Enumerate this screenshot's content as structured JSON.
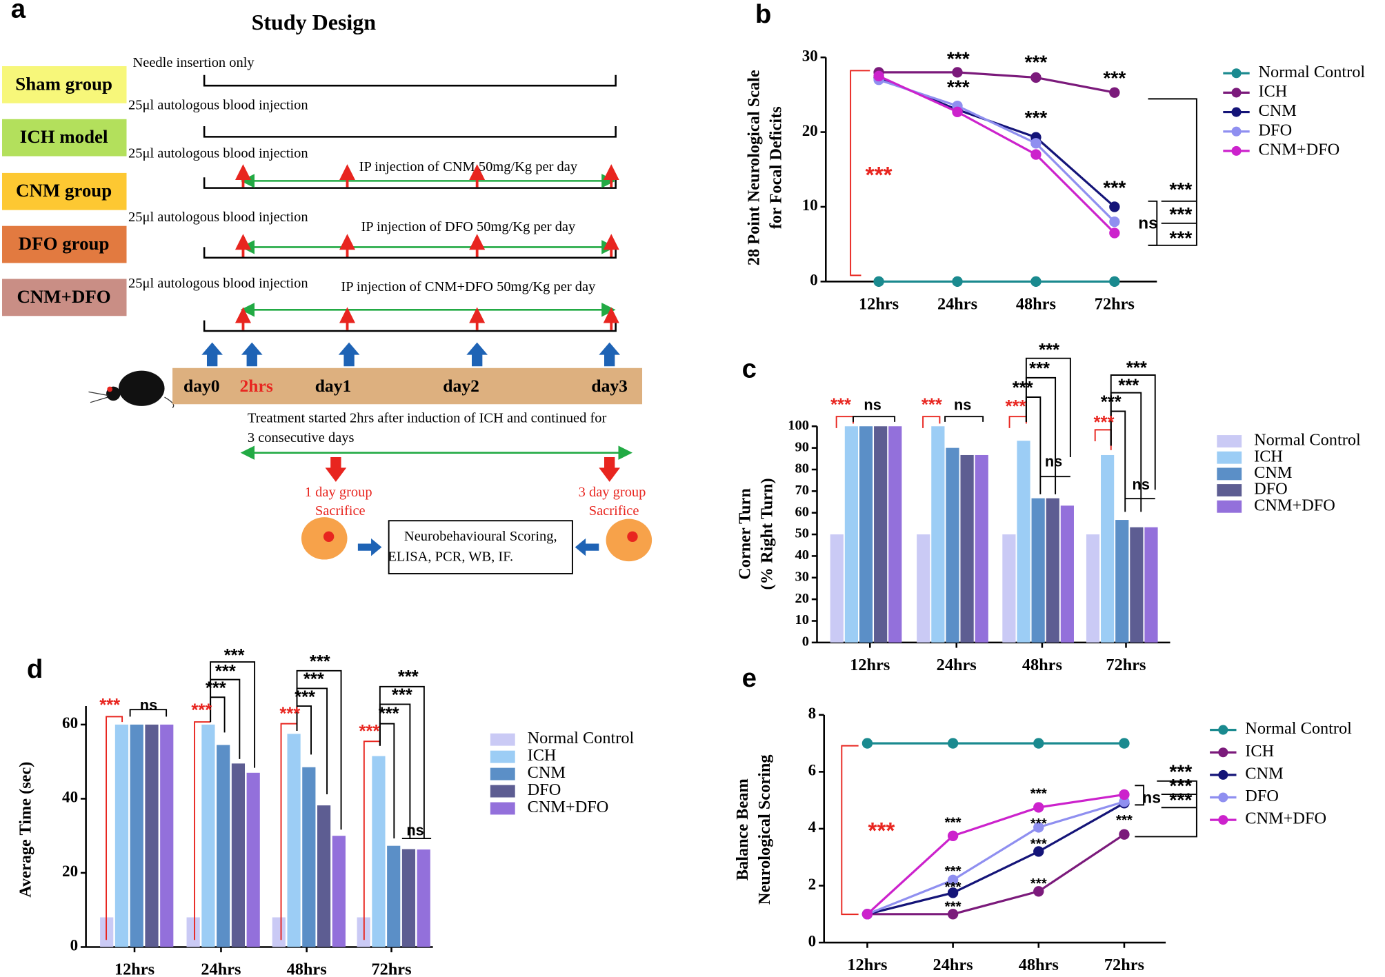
{
  "diagram": {
    "panel": "a",
    "title": "Study Design",
    "groups": [
      {
        "label": "Sham group",
        "color": "#f7f77a",
        "note": "Needle insertion only"
      },
      {
        "label": "ICH model",
        "color": "#b3e05c",
        "note": "25μl autologous blood injection"
      },
      {
        "label": "CNM group",
        "color": "#fdc832",
        "note": "25μl autologous blood injection",
        "ip": "IP injection of CNM 50mg/Kg per day"
      },
      {
        "label": "DFO group",
        "color": "#e27a40",
        "note": "25μl autologous blood injection",
        "ip": "IP injection of DFO 50mg/Kg per day"
      },
      {
        "label": "CNM+DFO",
        "color": "#c98e85",
        "note": "25μl autologous blood injection",
        "ip": "IP injection of CNM+DFO 50mg/Kg per day"
      }
    ],
    "timeline": [
      "day0",
      "2hrs",
      "day1",
      "day2",
      "day3"
    ],
    "treatment_note": [
      "Treatment started 2hrs after induction of ICH and continued for",
      "3 consecutive days"
    ],
    "sacrifice": [
      [
        "1 day group",
        "Sacrifice"
      ],
      [
        "3 day group",
        "Sacrifice"
      ]
    ],
    "analysis": [
      "Neurobehavioural Scoring,",
      "ELISA, PCR, WB, IF."
    ]
  },
  "chart_data": [
    {
      "panel": "b",
      "type": "line",
      "y_label": [
        "28 Point Neurological Scale",
        "for Focal Deficits"
      ],
      "categories": [
        "12hrs",
        "24hrs",
        "48hrs",
        "72hrs"
      ],
      "series": [
        {
          "name": "Normal Control",
          "color": "#1a8a8f",
          "values": [
            0,
            0,
            0,
            0
          ]
        },
        {
          "name": "ICH",
          "color": "#7b1a7b",
          "values": [
            28,
            28,
            27.3,
            25.3
          ]
        },
        {
          "name": "CNM",
          "color": "#141478",
          "values": [
            27.3,
            23,
            19.3,
            10
          ]
        },
        {
          "name": "DFO",
          "color": "#8f8ff0",
          "values": [
            27,
            23.5,
            18.5,
            8
          ]
        },
        {
          "name": "CNM+DFO",
          "color": "#cc22cc",
          "values": [
            27.5,
            22.7,
            17,
            6.5
          ]
        }
      ],
      "ylim": [
        0,
        30
      ],
      "yticks": [
        0,
        10,
        20,
        30
      ],
      "annotations": [
        {
          "text": "***",
          "color": "#000000"
        },
        {
          "text": "***",
          "color": "#000000"
        },
        {
          "text": "***",
          "color": "#000000"
        },
        {
          "text": "***",
          "color": "#000000"
        },
        {
          "text": "***",
          "color": "#000000"
        },
        {
          "text": "***",
          "color": "#000000"
        },
        {
          "text": "***",
          "color": "#e8251f"
        },
        {
          "text": "ns",
          "color": "#000000"
        },
        {
          "text": "***",
          "color": "#000000"
        },
        {
          "text": "***",
          "color": "#000000"
        },
        {
          "text": "***",
          "color": "#000000"
        }
      ]
    },
    {
      "panel": "c",
      "type": "bar",
      "y_label": [
        "Corner Turn",
        "(% Right Turn)"
      ],
      "categories": [
        "12hrs",
        "24hrs",
        "48hrs",
        "72hrs"
      ],
      "series": [
        {
          "name": "Normal Control",
          "color": "#cacaf5",
          "values": [
            50,
            50,
            50,
            50
          ]
        },
        {
          "name": "ICH",
          "color": "#9ccdf5",
          "values": [
            100,
            100,
            93.3,
            86.7
          ]
        },
        {
          "name": "CNM",
          "color": "#5b8fc7",
          "values": [
            100,
            90,
            66.7,
            56.7
          ]
        },
        {
          "name": "DFO",
          "color": "#5d5d92",
          "values": [
            100,
            86.7,
            66.7,
            53.3
          ]
        },
        {
          "name": "CNM+DFO",
          "color": "#9370db",
          "values": [
            100,
            86.7,
            63.3,
            53.3
          ]
        }
      ],
      "ylim": [
        0,
        100
      ],
      "yticks": [
        0,
        10,
        20,
        30,
        40,
        50,
        60,
        70,
        80,
        90,
        100
      ],
      "annotations": [
        {
          "text": "***",
          "color": "#e8251f"
        },
        {
          "text": "ns",
          "color": "#000000"
        },
        {
          "text": "***",
          "color": "#e8251f"
        },
        {
          "text": "ns",
          "color": "#000000"
        },
        {
          "text": "***",
          "color": "#e8251f"
        },
        {
          "text": "***",
          "color": "#000000"
        },
        {
          "text": "***",
          "color": "#000000"
        },
        {
          "text": "***",
          "color": "#000000"
        },
        {
          "text": "ns",
          "color": "#000000"
        },
        {
          "text": "***",
          "color": "#e8251f"
        },
        {
          "text": "***",
          "color": "#000000"
        },
        {
          "text": "***",
          "color": "#000000"
        },
        {
          "text": "***",
          "color": "#000000"
        },
        {
          "text": "ns",
          "color": "#000000"
        }
      ]
    },
    {
      "panel": "d",
      "type": "bar",
      "y_label": [
        "Average Time (sec)"
      ],
      "categories": [
        "12hrs",
        "24hrs",
        "48hrs",
        "72hrs"
      ],
      "series": [
        {
          "name": "Normal Control",
          "color": "#cacaf5",
          "values": [
            8,
            8,
            8,
            8
          ]
        },
        {
          "name": "ICH",
          "color": "#9ccdf5",
          "values": [
            60,
            60,
            57.5,
            51.5
          ]
        },
        {
          "name": "CNM",
          "color": "#5b8fc7",
          "values": [
            60,
            54.5,
            48.5,
            27.3
          ]
        },
        {
          "name": "DFO",
          "color": "#5d5d92",
          "values": [
            60,
            49.5,
            38.2,
            26.4
          ]
        },
        {
          "name": "CNM+DFO",
          "color": "#9370db",
          "values": [
            60,
            47,
            30,
            26.3
          ]
        }
      ],
      "ylim": [
        0,
        65
      ],
      "yticks": [
        0,
        20,
        40,
        60
      ],
      "annotations": [
        {
          "text": "***",
          "color": "#e8251f"
        },
        {
          "text": "ns",
          "color": "#000000"
        },
        {
          "text": "***",
          "color": "#e8251f"
        },
        {
          "text": "***",
          "color": "#000000"
        },
        {
          "text": "***",
          "color": "#000000"
        },
        {
          "text": "***",
          "color": "#000000"
        },
        {
          "text": "***",
          "color": "#e8251f"
        },
        {
          "text": "***",
          "color": "#000000"
        },
        {
          "text": "***",
          "color": "#000000"
        },
        {
          "text": "***",
          "color": "#000000"
        },
        {
          "text": "***",
          "color": "#e8251f"
        },
        {
          "text": "***",
          "color": "#000000"
        },
        {
          "text": "***",
          "color": "#000000"
        },
        {
          "text": "***",
          "color": "#000000"
        },
        {
          "text": "ns",
          "color": "#000000"
        }
      ]
    },
    {
      "panel": "e",
      "type": "line",
      "y_label": [
        "Balance Beam",
        "Neurological Scoring"
      ],
      "categories": [
        "12hrs",
        "24hrs",
        "48hrs",
        "72hrs"
      ],
      "series": [
        {
          "name": "Normal Control",
          "color": "#1a8a8f",
          "values": [
            7,
            7,
            7,
            7
          ]
        },
        {
          "name": "ICH",
          "color": "#7b1a7b",
          "values": [
            1,
            1,
            1.8,
            3.8
          ]
        },
        {
          "name": "CNM",
          "color": "#141478",
          "values": [
            1,
            1.75,
            3.2,
            4.9
          ]
        },
        {
          "name": "DFO",
          "color": "#8f8ff0",
          "values": [
            1,
            2.2,
            4.05,
            4.95
          ]
        },
        {
          "name": "CNM+DFO",
          "color": "#cc22cc",
          "values": [
            1,
            3.75,
            4.75,
            5.2
          ]
        }
      ],
      "ylim": [
        0,
        8
      ],
      "yticks": [
        0,
        2,
        4,
        6,
        8
      ],
      "annotations": [
        {
          "text": "***",
          "color": "#e8251f"
        },
        {
          "text": "***",
          "color": "#000000"
        },
        {
          "text": "***",
          "color": "#000000"
        },
        {
          "text": "***",
          "color": "#000000"
        },
        {
          "text": "***",
          "color": "#000000"
        },
        {
          "text": "***",
          "color": "#000000"
        },
        {
          "text": "***",
          "color": "#000000"
        },
        {
          "text": "***",
          "color": "#000000"
        },
        {
          "text": "***",
          "color": "#000000"
        },
        {
          "text": "***",
          "color": "#000000"
        },
        {
          "text": "ns",
          "color": "#000000"
        },
        {
          "text": "***",
          "color": "#000000"
        },
        {
          "text": "***",
          "color": "#000000"
        },
        {
          "text": "***",
          "color": "#000000"
        }
      ]
    }
  ]
}
